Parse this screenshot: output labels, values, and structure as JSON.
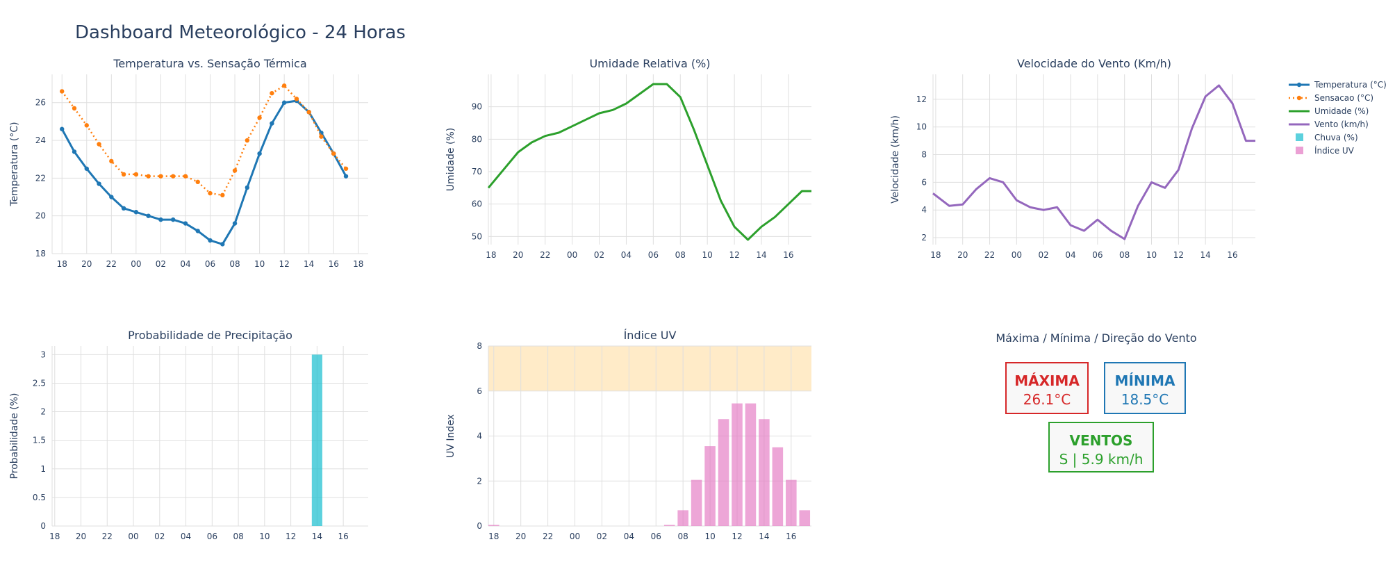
{
  "dashboard": {
    "title": "Dashboard Meteorológico - 24 Horas"
  },
  "colors": {
    "temperature": "#1f77b4",
    "feels_like": "#ff7f0e",
    "humidity": "#2ca02c",
    "wind": "#9467bd",
    "rain": "#17becf",
    "uv": "#e377c2",
    "uv_band": "#ffe4b5",
    "max": "#d62728",
    "min": "#1f77b4",
    "winds": "#2ca02c",
    "grid": "#dfdfdf",
    "text": "#2a3f5f"
  },
  "legend": {
    "position": "top-right",
    "items": [
      {
        "label": "Temperatura (°C)",
        "kind": "line-marker",
        "color": "#1f77b4"
      },
      {
        "label": "Sensacao (°C)",
        "kind": "dot-marker",
        "color": "#ff7f0e"
      },
      {
        "label": "Umidade (%)",
        "kind": "line",
        "color": "#2ca02c"
      },
      {
        "label": "Vento (km/h)",
        "kind": "line",
        "color": "#9467bd"
      },
      {
        "label": "Chuva (%)",
        "kind": "square",
        "color": "#17becf"
      },
      {
        "label": "Índice UV",
        "kind": "square",
        "color": "#e377c2"
      }
    ]
  },
  "summary": {
    "title": "Máxima / Mínima / Direção do Vento",
    "max": {
      "label": "MÁXIMA",
      "value": "26.1°C"
    },
    "min": {
      "label": "MÍNIMA",
      "value": "18.5°C"
    },
    "wind": {
      "label": "VENTOS",
      "value": "S | 5.9 km/h"
    }
  },
  "chart_data": [
    {
      "id": "temp",
      "type": "line",
      "title": "Temperatura vs. Sensação Térmica",
      "xlabel": "",
      "ylabel": "Temperatura (°C)",
      "x": [
        18,
        19,
        20,
        21,
        22,
        23,
        24,
        25,
        26,
        27,
        28,
        29,
        30,
        31,
        32,
        33,
        34,
        35,
        36,
        37,
        38,
        39,
        40,
        41
      ],
      "xlim": [
        17.2,
        42.8
      ],
      "ylim": [
        18,
        27.5
      ],
      "xticks": [
        18,
        20,
        22,
        24,
        26,
        28,
        30,
        32,
        34,
        36,
        38,
        40,
        42
      ],
      "xtick_labels": [
        "18",
        "20",
        "22",
        "00",
        "02",
        "04",
        "06",
        "08",
        "10",
        "12",
        "14",
        "16",
        "18"
      ],
      "yticks": [
        18,
        20,
        22,
        24,
        26
      ],
      "grid": true,
      "series": [
        {
          "name": "Temperatura (°C)",
          "style": "line-marker",
          "values": [
            24.6,
            23.4,
            22.5,
            21.7,
            21.0,
            20.4,
            20.2,
            20.0,
            19.8,
            19.8,
            19.6,
            19.2,
            18.7,
            18.5,
            19.6,
            21.5,
            23.3,
            24.9,
            26.0,
            26.1,
            25.5,
            24.4,
            23.3,
            22.1
          ]
        },
        {
          "name": "Sensacao (°C)",
          "style": "dot-marker",
          "values": [
            26.6,
            25.7,
            24.8,
            23.8,
            22.9,
            22.2,
            22.2,
            22.1,
            22.1,
            22.1,
            22.1,
            21.8,
            21.2,
            21.1,
            22.4,
            24.0,
            25.2,
            26.5,
            26.9,
            26.2,
            25.5,
            24.2,
            23.3,
            22.5
          ]
        }
      ]
    },
    {
      "id": "hum",
      "type": "line",
      "title": "Umidade Relativa (%)",
      "xlabel": "",
      "ylabel": "Umidade (%)",
      "x": [
        17.8,
        19,
        20,
        21,
        22,
        23,
        24,
        25,
        26,
        27,
        28,
        29,
        30,
        31,
        32,
        33,
        34,
        35,
        36,
        37,
        38,
        39,
        40,
        41,
        41.7
      ],
      "xlim": [
        17.8,
        41.7
      ],
      "ylim": [
        47.5,
        100
      ],
      "xticks": [
        18,
        20,
        22,
        24,
        26,
        28,
        30,
        32,
        34,
        36,
        38,
        40
      ],
      "xtick_labels": [
        "18",
        "20",
        "22",
        "00",
        "02",
        "04",
        "06",
        "08",
        "10",
        "12",
        "14",
        "16"
      ],
      "yticks": [
        50,
        60,
        70,
        80,
        90
      ],
      "grid": true,
      "series": [
        {
          "name": "Umidade (%)",
          "style": "line",
          "values": [
            65,
            71,
            76,
            79,
            81,
            82,
            84,
            86,
            88,
            89,
            91,
            94,
            97,
            97,
            93,
            83,
            72,
            61,
            53,
            49,
            53,
            56,
            60,
            64,
            64
          ]
        }
      ]
    },
    {
      "id": "wind",
      "type": "line",
      "title": "Velocidade do Vento (Km/h)",
      "xlabel": "",
      "ylabel": "Velocidade (km/h)",
      "x": [
        17.8,
        19,
        20,
        21,
        22,
        23,
        24,
        25,
        26,
        27,
        28,
        29,
        30,
        31,
        32,
        33,
        34,
        35,
        36,
        37,
        38,
        39,
        40,
        41,
        41.7
      ],
      "xlim": [
        17.8,
        41.7
      ],
      "ylim": [
        1.5,
        13.8
      ],
      "xticks": [
        18,
        20,
        22,
        24,
        26,
        28,
        30,
        32,
        34,
        36,
        38,
        40
      ],
      "xtick_labels": [
        "18",
        "20",
        "22",
        "00",
        "02",
        "04",
        "06",
        "08",
        "10",
        "12",
        "14",
        "16"
      ],
      "yticks": [
        2,
        4,
        6,
        8,
        10,
        12
      ],
      "grid": true,
      "series": [
        {
          "name": "Vento (km/h)",
          "style": "line",
          "values": [
            5.2,
            4.3,
            4.4,
            5.5,
            6.3,
            6.0,
            4.7,
            4.2,
            4.0,
            4.2,
            2.9,
            2.5,
            3.3,
            2.5,
            1.9,
            4.3,
            6.0,
            5.6,
            6.9,
            9.9,
            12.2,
            13.0,
            11.7,
            9.0,
            9.0
          ]
        }
      ]
    },
    {
      "id": "rain",
      "type": "bar",
      "title": "Probabilidade de Precipitação",
      "xlabel": "",
      "ylabel": "Probabilidade (%)",
      "x": [
        18,
        19,
        20,
        21,
        22,
        23,
        24,
        25,
        26,
        27,
        28,
        29,
        30,
        31,
        32,
        33,
        34,
        35,
        36,
        37,
        38,
        39,
        40,
        41
      ],
      "xlim": [
        17.8,
        41.9
      ],
      "ylim": [
        0,
        3.15
      ],
      "xticks": [
        18,
        20,
        22,
        24,
        26,
        28,
        30,
        32,
        34,
        36,
        38,
        40
      ],
      "xtick_labels": [
        "18",
        "20",
        "22",
        "00",
        "02",
        "04",
        "06",
        "08",
        "10",
        "12",
        "14",
        "16"
      ],
      "yticks": [
        0,
        0.5,
        1,
        1.5,
        2,
        2.5,
        3
      ],
      "ytick_labels": [
        "0",
        "0.5",
        "1",
        "1.5",
        "2",
        "2.5",
        "3"
      ],
      "grid": true,
      "series": [
        {
          "name": "Chuva (%)",
          "values": [
            0,
            0,
            0,
            0,
            0,
            0,
            0,
            0,
            0,
            0,
            0,
            0,
            0,
            0,
            0,
            0,
            0,
            0,
            0,
            0,
            3,
            0,
            0,
            0
          ]
        }
      ]
    },
    {
      "id": "uv",
      "type": "bar",
      "title": "Índice UV",
      "xlabel": "",
      "ylabel": "UV Index",
      "x": [
        18,
        19,
        20,
        21,
        22,
        23,
        24,
        25,
        26,
        27,
        28,
        29,
        30,
        31,
        32,
        33,
        34,
        35,
        36,
        37,
        38,
        39,
        40,
        41
      ],
      "xlim": [
        17.6,
        41.5
      ],
      "ylim": [
        0,
        8
      ],
      "xticks": [
        18,
        20,
        22,
        24,
        26,
        28,
        30,
        32,
        34,
        36,
        38,
        40
      ],
      "xtick_labels": [
        "18",
        "20",
        "22",
        "00",
        "02",
        "04",
        "06",
        "08",
        "10",
        "12",
        "14",
        "16"
      ],
      "yticks": [
        0,
        2,
        4,
        6,
        8
      ],
      "grid": true,
      "band": {
        "from": 6,
        "to": 8
      },
      "series": [
        {
          "name": "Índice UV",
          "values": [
            0.05,
            0,
            0,
            0,
            0,
            0,
            0,
            0,
            0,
            0,
            0,
            0,
            0,
            0.05,
            0.7,
            2.05,
            3.55,
            4.75,
            5.45,
            5.45,
            4.75,
            3.5,
            2.05,
            0.7
          ]
        }
      ]
    }
  ]
}
